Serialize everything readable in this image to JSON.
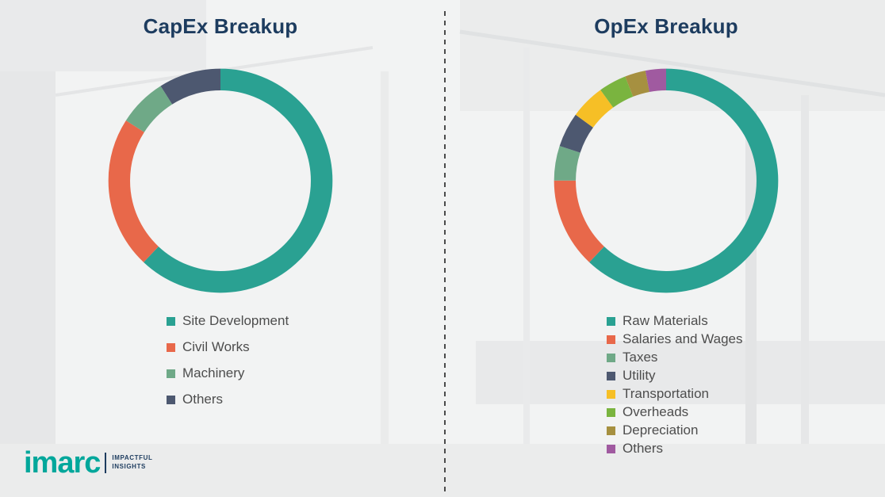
{
  "page": {
    "background_color": "#f2f3f3",
    "divider_color": "#4a4a4a",
    "title_color": "#1d3c5f",
    "legend_text_color": "#4d4d4d"
  },
  "chart_data": [
    {
      "type": "pie",
      "donut": true,
      "title": "CapEx Breakup",
      "labels": [
        "Site Development",
        "Civil Works",
        "Machinery",
        "Others"
      ],
      "values": [
        62,
        22,
        7,
        9
      ],
      "values_estimated": true,
      "colors": [
        "#2aa192",
        "#e8684a",
        "#6fa987",
        "#4d5870"
      ],
      "legend_position": "bottom"
    },
    {
      "type": "pie",
      "donut": true,
      "title": "OpEx Breakup",
      "labels": [
        "Raw Materials",
        "Salaries and Wages",
        "Taxes",
        "Utility",
        "Transportation",
        "Overheads",
        "Depreciation",
        "Others"
      ],
      "values": [
        62,
        13,
        5,
        5,
        5,
        4,
        3,
        3
      ],
      "values_estimated": true,
      "colors": [
        "#2aa192",
        "#e8684a",
        "#6fa987",
        "#4d5870",
        "#f6bf26",
        "#7ab43f",
        "#a69040",
        "#a05aa0"
      ],
      "legend_position": "bottom"
    }
  ],
  "logo": {
    "name": "imarc",
    "tagline_line1": "IMPACTFUL",
    "tagline_line2": "INSIGHTS",
    "brand_color": "#00a79b"
  }
}
